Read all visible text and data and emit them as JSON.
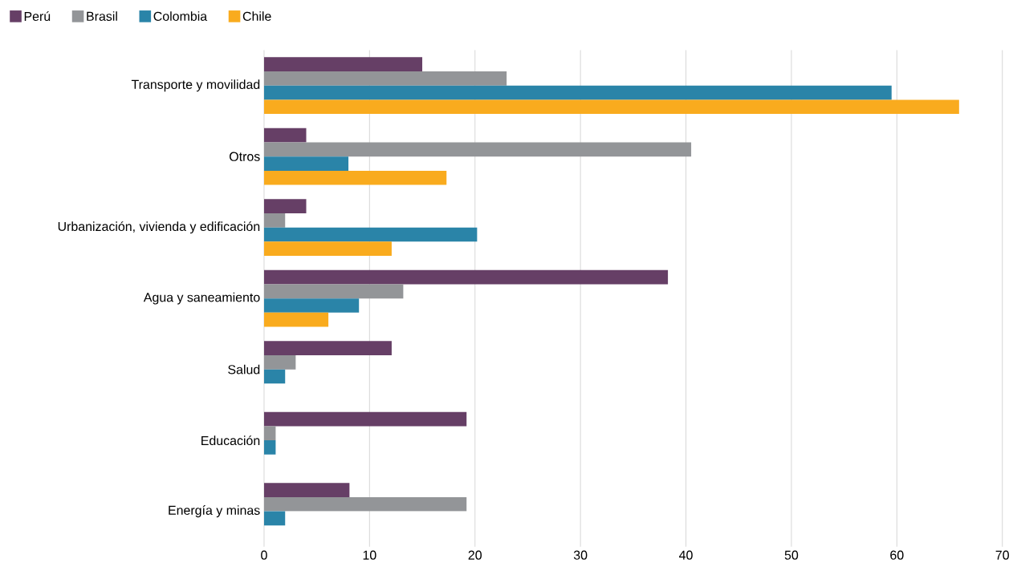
{
  "chart_data": {
    "type": "bar",
    "orientation": "horizontal",
    "categories": [
      "Transporte y movilidad",
      "Otros",
      "Urbanización, vivienda y edificación",
      "Agua y saneamiento",
      "Salud",
      "Educación",
      "Energía y minas"
    ],
    "series": [
      {
        "name": "Perú",
        "color": "#663f66",
        "values": [
          15,
          4,
          4,
          38.3,
          12.1,
          19.2,
          8.1
        ]
      },
      {
        "name": "Brasil",
        "color": "#939598",
        "values": [
          23,
          40.5,
          2,
          13.2,
          3,
          1.1,
          19.2
        ]
      },
      {
        "name": "Colombia",
        "color": "#2a84a8",
        "values": [
          59.5,
          8,
          20.2,
          9,
          2,
          1.1,
          2
        ]
      },
      {
        "name": "Chile",
        "color": "#f9ab1e",
        "values": [
          65.9,
          17.3,
          12.1,
          6.1,
          null,
          null,
          null
        ]
      }
    ],
    "xlim": [
      0,
      70
    ],
    "xticks": [
      0,
      10,
      20,
      30,
      40,
      50,
      60,
      70
    ],
    "grid": "x",
    "legend": "top left"
  }
}
